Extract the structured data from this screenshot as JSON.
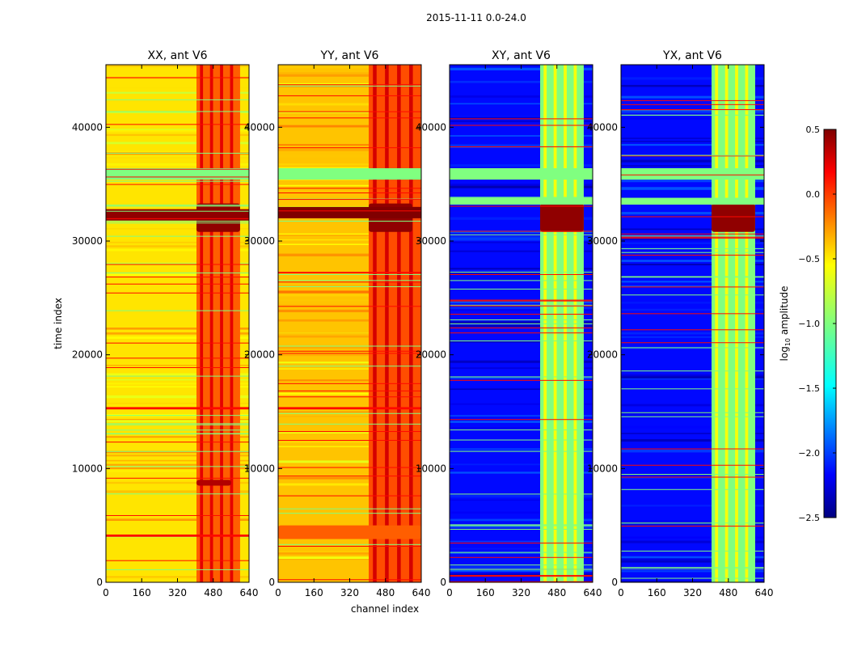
{
  "chart_data": {
    "type": "heatmap",
    "suptitle": "2015-11-11 0.0-24.0",
    "xlabel": "channel index",
    "ylabel": "time index",
    "xlim": [
      0,
      640
    ],
    "ylim": [
      0,
      45500
    ],
    "xticks": [
      0,
      160,
      320,
      480,
      640
    ],
    "yticks": [
      0,
      10000,
      20000,
      30000,
      40000
    ],
    "colorbar": {
      "label": "log10 amplitude",
      "label_base": "log",
      "label_sub": "10",
      "label_rest": " amplitude",
      "range": [
        -2.5,
        0.5
      ],
      "ticks": [
        "0.5",
        "0.0",
        "−0.5",
        "−1.0",
        "−1.5",
        "−2.0",
        "−2.5"
      ],
      "colormap": "jet"
    },
    "panels": [
      {
        "title": "XX, ant V6",
        "background_level": -0.55,
        "vertical_bands": [
          {
            "channel_start": 405,
            "channel_end": 600,
            "level": -0.15
          }
        ],
        "hot_spots": [
          {
            "channel_start": 405,
            "channel_end": 600,
            "time_start": 30800,
            "time_end": 33300,
            "level": 0.45
          },
          {
            "channel_start": 405,
            "channel_end": 560,
            "time_start": 8500,
            "time_end": 9000,
            "level": 0.35
          }
        ],
        "full_rows": [
          {
            "time_start": 31800,
            "time_end": 32800,
            "level": 0.45
          },
          {
            "time_start": 35400,
            "time_end": 36400,
            "level": -1.0
          },
          {
            "time_start": 15200,
            "time_end": 15400,
            "level": 0.1
          },
          {
            "time_start": 4000,
            "time_end": 4200,
            "level": 0.1
          }
        ]
      },
      {
        "title": "YY, ant V6",
        "background_level": -0.45,
        "vertical_bands": [
          {
            "channel_start": 405,
            "channel_end": 640,
            "level": -0.1
          }
        ],
        "hot_spots": [
          {
            "channel_start": 405,
            "channel_end": 600,
            "time_start": 30800,
            "time_end": 33300,
            "level": 0.45
          },
          {
            "channel_start": 0,
            "channel_end": 640,
            "time_start": 3800,
            "time_end": 5000,
            "level": -0.15
          }
        ],
        "full_rows": [
          {
            "time_start": 32000,
            "time_end": 33000,
            "level": 0.5
          },
          {
            "time_start": 35400,
            "time_end": 36400,
            "level": -1.0
          },
          {
            "time_start": 15200,
            "time_end": 15400,
            "level": 0.1
          }
        ]
      },
      {
        "title": "XY, ant V6",
        "background_level": -2.1,
        "vertical_bands": [
          {
            "channel_start": 405,
            "channel_end": 600,
            "level": -1.0
          }
        ],
        "hot_spots": [
          {
            "channel_start": 405,
            "channel_end": 600,
            "time_start": 30800,
            "time_end": 33300,
            "level": 0.45
          }
        ],
        "full_rows": [
          {
            "time_start": 35400,
            "time_end": 36400,
            "level": -1.0
          },
          {
            "time_start": 33200,
            "time_end": 33800,
            "level": -1.0
          }
        ]
      },
      {
        "title": "YX, ant V6",
        "background_level": -2.1,
        "vertical_bands": [
          {
            "channel_start": 405,
            "channel_end": 600,
            "level": -1.0
          }
        ],
        "hot_spots": [
          {
            "channel_start": 405,
            "channel_end": 600,
            "time_start": 30800,
            "time_end": 33300,
            "level": 0.45
          }
        ],
        "full_rows": [
          {
            "time_start": 35400,
            "time_end": 36400,
            "level": -1.0
          },
          {
            "time_start": 33200,
            "time_end": 33800,
            "level": -1.0
          }
        ]
      }
    ]
  }
}
